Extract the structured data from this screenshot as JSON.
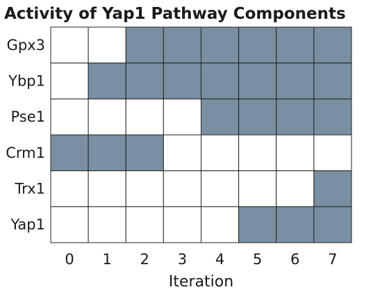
{
  "chart_data": {
    "type": "heatmap",
    "title": "Activity of Yap1 Pathway Components",
    "xlabel": "Iteration",
    "ylabel": "",
    "x": [
      "0",
      "1",
      "2",
      "3",
      "4",
      "5",
      "6",
      "7"
    ],
    "y": [
      "Gpx3",
      "Ybp1",
      "Pse1",
      "Crm1",
      "Trx1",
      "Yap1"
    ],
    "values": [
      [
        0,
        0,
        1,
        1,
        1,
        1,
        1,
        1
      ],
      [
        0,
        1,
        1,
        1,
        1,
        1,
        1,
        1
      ],
      [
        0,
        0,
        0,
        0,
        1,
        1,
        1,
        1
      ],
      [
        1,
        1,
        1,
        0,
        0,
        0,
        0,
        0
      ],
      [
        0,
        0,
        0,
        0,
        0,
        0,
        0,
        1
      ],
      [
        0,
        0,
        0,
        0,
        0,
        1,
        1,
        1
      ]
    ],
    "colors": {
      "active": "#7a8fa1",
      "inactive": "#ffffff",
      "grid": "#222222"
    },
    "grid": true,
    "legend": "none"
  }
}
